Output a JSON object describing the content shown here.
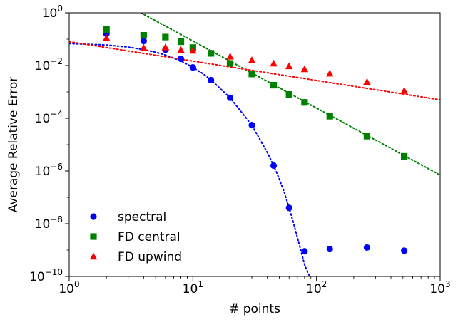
{
  "chart_data": {
    "type": "scatter",
    "title": "",
    "xlabel": "# points",
    "ylabel": "Average Relative Error",
    "xscale": "log",
    "yscale": "log",
    "xlim": [
      1,
      1000
    ],
    "ylim": [
      1e-10,
      1
    ],
    "x_ticks": [
      {
        "base": "10",
        "exp": "0"
      },
      {
        "base": "10",
        "exp": "1"
      },
      {
        "base": "10",
        "exp": "2"
      },
      {
        "base": "10",
        "exp": "3"
      }
    ],
    "y_ticks": [
      {
        "base": "10",
        "exp": "0"
      },
      {
        "base": "10",
        "exp": "−2"
      },
      {
        "base": "10",
        "exp": "−4"
      },
      {
        "base": "10",
        "exp": "−6"
      },
      {
        "base": "10",
        "exp": "−8"
      },
      {
        "base": "10",
        "exp": "−10"
      }
    ],
    "grid": false,
    "legend_position": "lower-left",
    "series": [
      {
        "name": "spectral",
        "color": "#0000ff",
        "marker": "circle",
        "x": [
          2,
          4,
          6,
          8,
          10,
          14,
          20,
          30,
          45,
          60,
          80,
          128,
          256,
          512
        ],
        "y": [
          0.16,
          0.085,
          0.04,
          0.018,
          0.0085,
          0.0028,
          0.0006,
          5.5e-05,
          1.6e-06,
          4e-08,
          9e-10,
          1.1e-09,
          1.25e-09,
          9.5e-10
        ]
      },
      {
        "name": "FD central",
        "color": "#008000",
        "marker": "square",
        "x": [
          2,
          4,
          6,
          8,
          10,
          14,
          20,
          30,
          45,
          60,
          80,
          128,
          256,
          512
        ],
        "y": [
          0.23,
          0.14,
          0.12,
          0.08,
          0.048,
          0.029,
          0.012,
          0.0048,
          0.0018,
          0.0008,
          0.0004,
          0.00012,
          2.1e-05,
          3.6e-06
        ]
      },
      {
        "name": "FD upwind",
        "color": "#ff0000",
        "marker": "triangle",
        "x": [
          2,
          4,
          6,
          8,
          10,
          20,
          30,
          45,
          60,
          80,
          128,
          256,
          512
        ],
        "y": [
          0.11,
          0.047,
          0.049,
          0.039,
          0.037,
          0.022,
          0.016,
          0.012,
          0.0095,
          0.0073,
          0.005,
          0.0024,
          0.0011
        ]
      }
    ],
    "fits": [
      {
        "color": "#0000ff",
        "x": [
          1,
          2,
          3,
          4,
          5,
          6,
          7,
          8,
          10,
          12,
          14,
          16,
          20,
          25,
          30,
          35,
          40,
          45,
          50,
          55,
          60,
          65,
          70,
          75,
          80,
          85,
          88
        ],
        "y": [
          0.068,
          0.06,
          0.05,
          0.04,
          0.032,
          0.025,
          0.019,
          0.015,
          0.0085,
          0.005,
          0.0028,
          0.0016,
          0.0006,
          0.00016,
          5.5e-05,
          1.5e-05,
          5e-06,
          1.6e-06,
          5e-07,
          1.5e-07,
          4e-08,
          1.1e-08,
          3e-09,
          9e-10,
          2.8e-10,
          1.4e-10,
          1e-10
        ]
      },
      {
        "color": "#008000",
        "x": [
          3.8,
          1000
        ],
        "y": [
          1,
          7e-07
        ]
      },
      {
        "color": "#ff0000",
        "x": [
          1,
          1000
        ],
        "y": [
          0.08,
          0.0005
        ]
      }
    ]
  }
}
